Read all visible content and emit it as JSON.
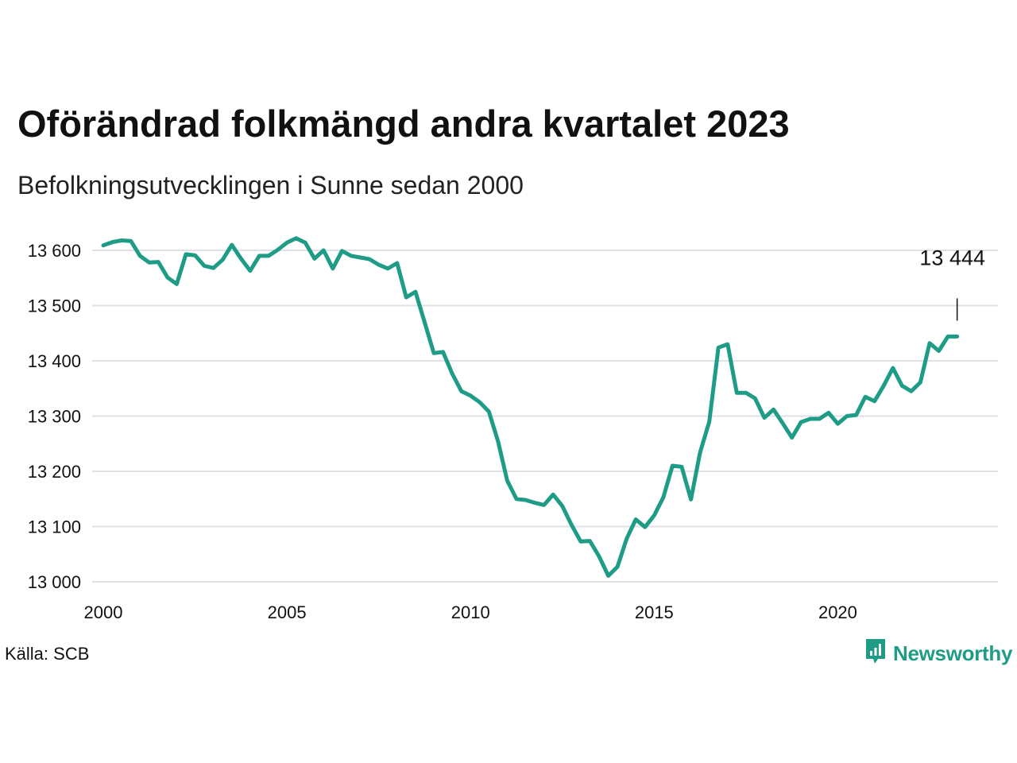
{
  "title": "Oförändrad folkmängd andra kvartalet 2023",
  "subtitle": "Befolkningsutvecklingen i Sunne sedan 2000",
  "source": "Källa: SCB",
  "brand": {
    "name": "Newsworthy",
    "icon": "newsworthy-logo-icon"
  },
  "colors": {
    "line": "#1f9c86",
    "grid": "#e0e0e6",
    "text": "#111111"
  },
  "chart_data": {
    "type": "line",
    "title": "Oförändrad folkmängd andra kvartalet 2023",
    "subtitle": "Befolkningsutvecklingen i Sunne sedan 2000",
    "xlim": [
      2000,
      2024.3
    ],
    "ylim": [
      13000,
      13625
    ],
    "x_ticks": [
      2000,
      2005,
      2010,
      2015,
      2020
    ],
    "x_tick_labels": [
      "2000",
      "2005",
      "2010",
      "2015",
      "2020"
    ],
    "y_ticks": [
      13000,
      13100,
      13200,
      13300,
      13400,
      13500,
      13600
    ],
    "y_tick_labels": [
      "13 000",
      "13 100",
      "13 200",
      "13 300",
      "13 400",
      "13 500",
      "13 600"
    ],
    "grid": true,
    "annotation": {
      "label": "13 444",
      "x": 2023.25,
      "y": 13444
    },
    "series": [
      {
        "x": [
          2000.0,
          2000.25,
          2000.5,
          2000.75,
          2001.0,
          2001.25,
          2001.5,
          2001.75,
          2002.0,
          2002.25,
          2002.5,
          2002.75,
          2003.0,
          2003.25,
          2003.5,
          2003.75,
          2004.0,
          2004.25,
          2004.5,
          2004.75,
          2005.0,
          2005.25,
          2005.5,
          2005.75,
          2006.0,
          2006.25,
          2006.5,
          2006.75,
          2007.0,
          2007.25,
          2007.5,
          2007.75,
          2008.0,
          2008.25,
          2008.5,
          2008.75,
          2009.0,
          2009.25,
          2009.5,
          2009.75,
          2010.0,
          2010.25,
          2010.5,
          2010.75,
          2011.0,
          2011.25,
          2011.5,
          2011.75,
          2012.0,
          2012.25,
          2012.5,
          2012.75,
          2013.0,
          2013.25,
          2013.5,
          2013.75,
          2014.0,
          2014.25,
          2014.5,
          2014.75,
          2015.0,
          2015.25,
          2015.5,
          2015.75,
          2016.0,
          2016.25,
          2016.5,
          2016.75,
          2017.0,
          2017.25,
          2017.5,
          2017.75,
          2018.0,
          2018.25,
          2018.5,
          2018.75,
          2019.0,
          2019.25,
          2019.5,
          2019.75,
          2020.0,
          2020.25,
          2020.5,
          2020.75,
          2021.0,
          2021.25,
          2021.5,
          2021.75,
          2022.0,
          2022.25,
          2022.5,
          2022.75,
          2023.0,
          2023.25
        ],
        "y": [
          13609,
          13615,
          13618,
          13617,
          13590,
          13578,
          13579,
          13551,
          13539,
          13593,
          13591,
          13572,
          13568,
          13583,
          13610,
          13585,
          13563,
          13590,
          13590,
          13601,
          13614,
          13622,
          13614,
          13585,
          13600,
          13567,
          13599,
          13590,
          13587,
          13584,
          13574,
          13567,
          13577,
          13515,
          13525,
          13470,
          13414,
          13416,
          13377,
          13345,
          13337,
          13325,
          13308,
          13254,
          13183,
          13150,
          13148,
          13143,
          13139,
          13158,
          13137,
          13103,
          13073,
          13074,
          13046,
          13011,
          13027,
          13078,
          13113,
          13099,
          13120,
          13153,
          13210,
          13208,
          13149,
          13234,
          13290,
          13424,
          13430,
          13342,
          13342,
          13332,
          13297,
          13312,
          13287,
          13261,
          13289,
          13295,
          13295,
          13306,
          13286,
          13300,
          13302,
          13335,
          13327,
          13355,
          13387,
          13355,
          13345,
          13361,
          13432,
          13418,
          13444,
          13444
        ]
      }
    ]
  }
}
